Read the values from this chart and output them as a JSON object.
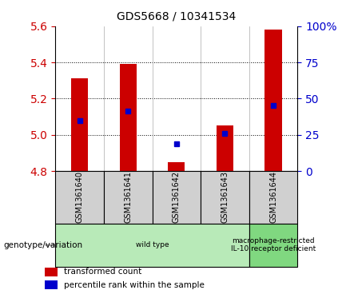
{
  "title": "GDS5668 / 10341534",
  "samples": [
    "GSM1361640",
    "GSM1361641",
    "GSM1361642",
    "GSM1361643",
    "GSM1361644"
  ],
  "bar_bottoms": [
    4.8,
    4.8,
    4.8,
    4.8,
    4.8
  ],
  "bar_tops": [
    5.31,
    5.39,
    4.85,
    5.05,
    5.58
  ],
  "percentile_values": [
    5.08,
    5.13,
    4.95,
    5.01,
    5.16
  ],
  "ylim_left": [
    4.8,
    5.6
  ],
  "ylim_right": [
    0,
    100
  ],
  "yticks_left": [
    4.8,
    5.0,
    5.2,
    5.4,
    5.6
  ],
  "yticks_right": [
    0,
    25,
    50,
    75,
    100
  ],
  "ytick_labels_right": [
    "0",
    "25",
    "50",
    "75",
    "100%"
  ],
  "bar_color": "#cc0000",
  "dot_color": "#0000cc",
  "grid_color": "#000000",
  "groups": [
    {
      "label": "wild type",
      "indices": [
        0,
        1,
        2,
        3
      ],
      "color": "#b8eab8"
    },
    {
      "label": "macrophage-restricted\nIL-10 receptor deficient",
      "indices": [
        4
      ],
      "color": "#80d880"
    }
  ],
  "group_row_label": "genotype/variation",
  "legend_items": [
    {
      "color": "#cc0000",
      "label": "transformed count"
    },
    {
      "color": "#0000cc",
      "label": "percentile rank within the sample"
    }
  ],
  "bar_width": 0.35,
  "tick_label_color_left": "#cc0000",
  "tick_label_color_right": "#0000cc",
  "sample_box_color": "#d0d0d0",
  "grid_dotted_ticks": [
    5.0,
    5.2,
    5.4
  ]
}
